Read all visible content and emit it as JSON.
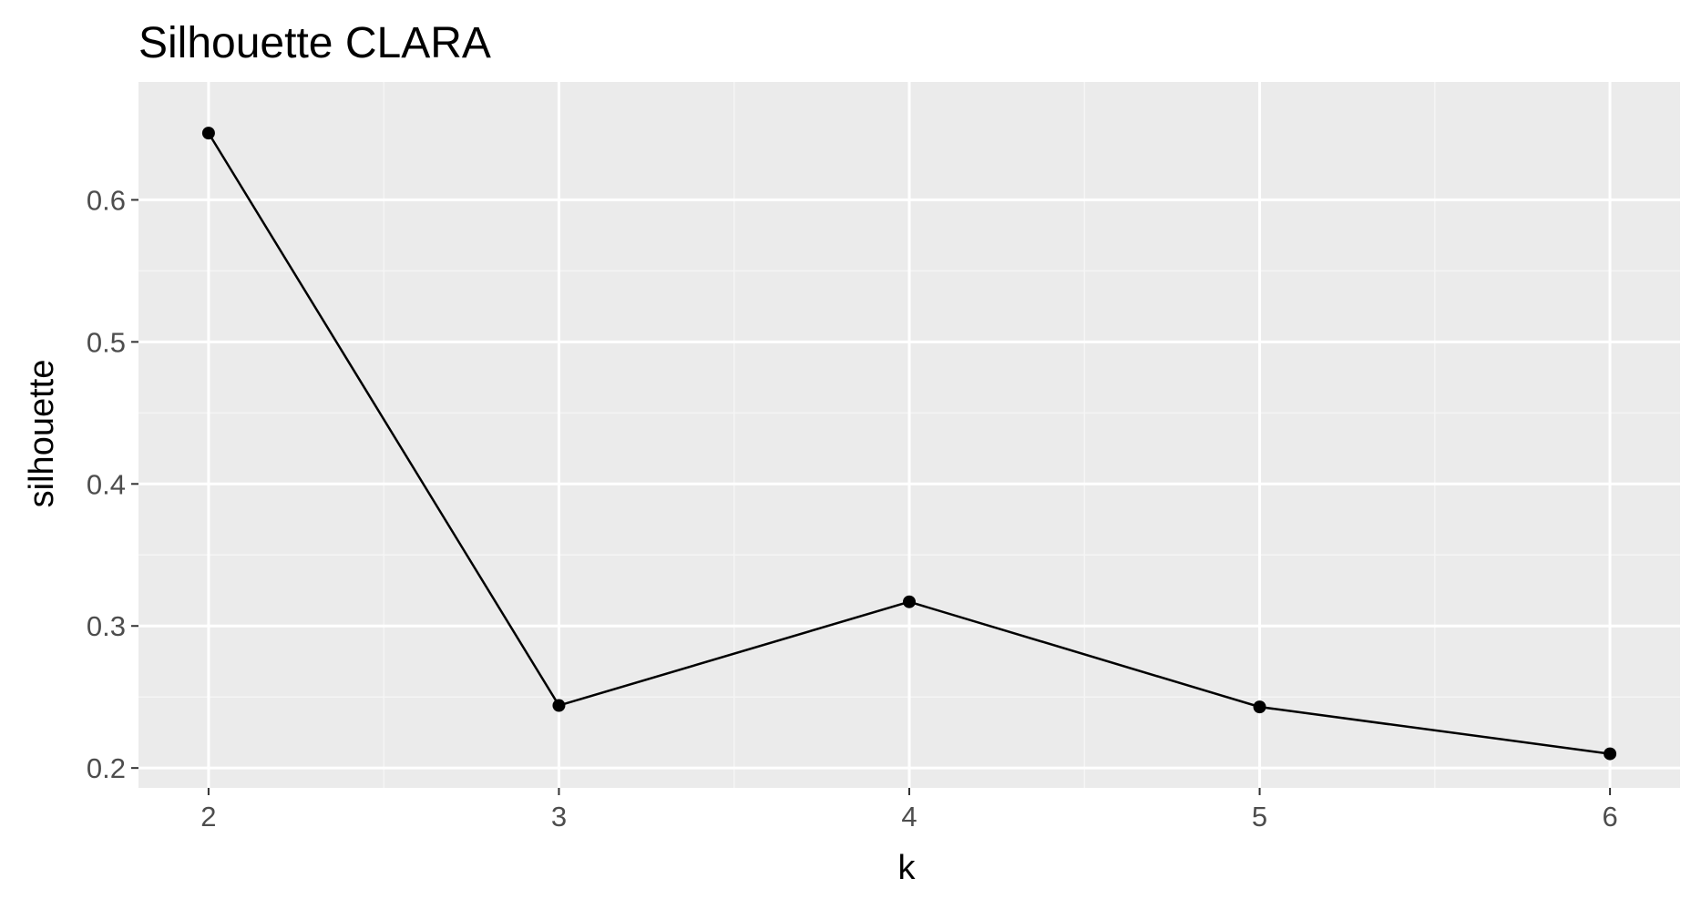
{
  "chart_data": {
    "type": "line",
    "title": "Silhouette CLARA",
    "xlabel": "k",
    "ylabel": "silhouette",
    "x": [
      2,
      3,
      4,
      5,
      6
    ],
    "x_tick_labels": [
      "2",
      "3",
      "4",
      "5",
      "6"
    ],
    "series": [
      {
        "values": [
          0.647,
          0.244,
          0.317,
          0.243,
          0.21
        ],
        "color": "#000000"
      }
    ],
    "y_ticks": [
      0.2,
      0.3,
      0.4,
      0.5,
      0.6
    ],
    "y_tick_labels": [
      "0.2",
      "0.3",
      "0.4",
      "0.5",
      "0.6"
    ],
    "xlim": [
      1.8,
      6.2
    ],
    "ylim": [
      0.186,
      0.683
    ],
    "grid": true,
    "legend": "none",
    "colors": {
      "panel_background": "#ebebeb",
      "grid_major": "#ffffff",
      "grid_minor": "#f5f5f5",
      "tick_label": "#4d4d4d",
      "line": "#000000"
    }
  }
}
